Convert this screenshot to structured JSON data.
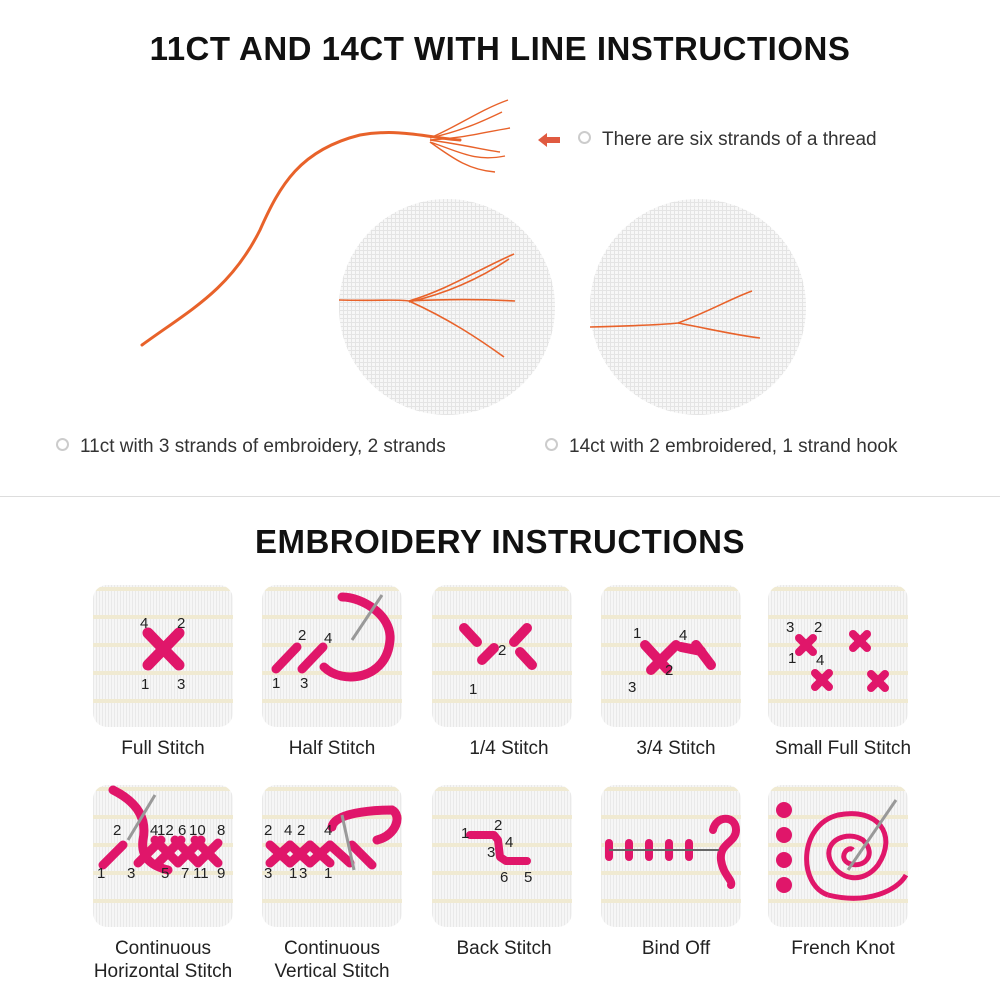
{
  "top": {
    "title": "11CT AND 14CT WITH LINE INSTRUCTIONS",
    "thread_note": "There are six strands of a thread",
    "caption_11ct": "11ct with 3 strands of embroidery, 2 strands",
    "caption_14ct": "14ct with 2 embroidered, 1 strand hook"
  },
  "bottom": {
    "title": "EMBROIDERY INSTRUCTIONS",
    "stitches": [
      {
        "label": "Full Stitch",
        "numbers": [
          "4",
          "2",
          "1",
          "3"
        ]
      },
      {
        "label": "Half Stitch",
        "numbers": [
          "2",
          "4",
          "1",
          "3"
        ]
      },
      {
        "label": "1/4 Stitch",
        "numbers": [
          "2",
          "1"
        ]
      },
      {
        "label": "3/4 Stitch",
        "numbers": [
          "1",
          "4",
          "2",
          "3"
        ]
      },
      {
        "label": "Small Full Stitch",
        "numbers": [
          "3",
          "2",
          "1",
          "4"
        ]
      },
      {
        "label": "Continuous Horizontal Stitch",
        "label_lines": [
          "Continuous",
          "Horizontal Stitch"
        ],
        "numbers": [
          "2",
          "4",
          "12",
          "6",
          "10",
          "8",
          "1",
          "3",
          "5",
          "7",
          "11",
          "9"
        ]
      },
      {
        "label": "Continuous Vertical Stitch",
        "label_lines": [
          "Continuous",
          "Vertical Stitch"
        ],
        "numbers": [
          "2",
          "4",
          "2",
          "4",
          "3",
          "1",
          "3",
          "1"
        ]
      },
      {
        "label": "Back Stitch",
        "numbers": [
          "1",
          "2",
          "4",
          "3",
          "6",
          "5"
        ]
      },
      {
        "label": "Bind Off",
        "numbers": []
      },
      {
        "label": "French Knot",
        "numbers": []
      }
    ]
  },
  "colors": {
    "thread": "#e8622a",
    "stitch": "#e0166a",
    "arrow": "#e05a40"
  }
}
